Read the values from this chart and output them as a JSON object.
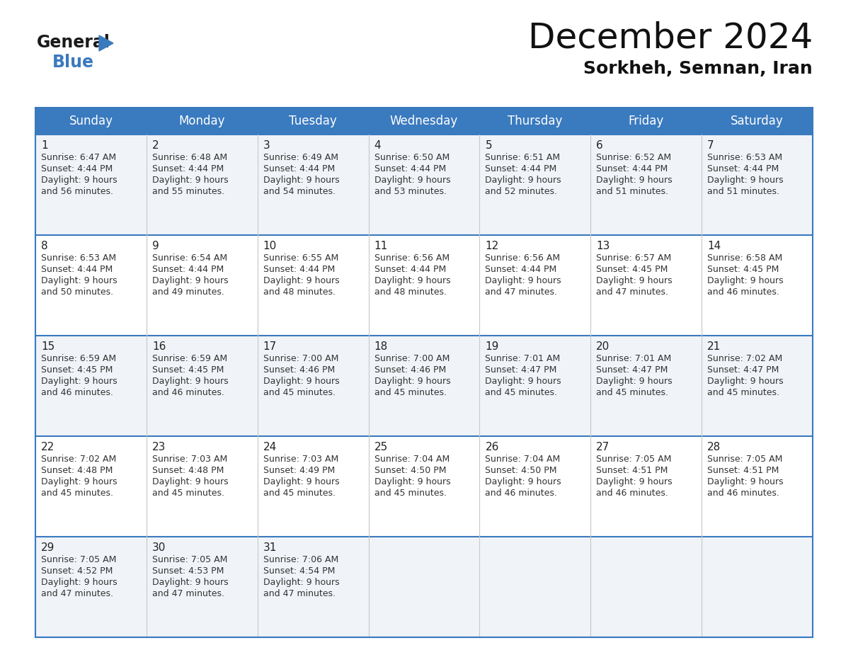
{
  "title": "December 2024",
  "subtitle": "Sorkheh, Semnan, Iran",
  "header_bg": "#3a7abf",
  "header_text": "#ffffff",
  "row_bg_odd": "#f0f4f8",
  "row_bg_even": "#ffffff",
  "separator_color": "#3a7abf",
  "cell_line_color": "#c8c8c8",
  "day_names": [
    "Sunday",
    "Monday",
    "Tuesday",
    "Wednesday",
    "Thursday",
    "Friday",
    "Saturday"
  ],
  "days": [
    {
      "day": 1,
      "col": 0,
      "row": 0,
      "sunrise": "6:47 AM",
      "sunset": "4:44 PM",
      "daylight_h": "9 hours",
      "daylight_m": "and 56 minutes."
    },
    {
      "day": 2,
      "col": 1,
      "row": 0,
      "sunrise": "6:48 AM",
      "sunset": "4:44 PM",
      "daylight_h": "9 hours",
      "daylight_m": "and 55 minutes."
    },
    {
      "day": 3,
      "col": 2,
      "row": 0,
      "sunrise": "6:49 AM",
      "sunset": "4:44 PM",
      "daylight_h": "9 hours",
      "daylight_m": "and 54 minutes."
    },
    {
      "day": 4,
      "col": 3,
      "row": 0,
      "sunrise": "6:50 AM",
      "sunset": "4:44 PM",
      "daylight_h": "9 hours",
      "daylight_m": "and 53 minutes."
    },
    {
      "day": 5,
      "col": 4,
      "row": 0,
      "sunrise": "6:51 AM",
      "sunset": "4:44 PM",
      "daylight_h": "9 hours",
      "daylight_m": "and 52 minutes."
    },
    {
      "day": 6,
      "col": 5,
      "row": 0,
      "sunrise": "6:52 AM",
      "sunset": "4:44 PM",
      "daylight_h": "9 hours",
      "daylight_m": "and 51 minutes."
    },
    {
      "day": 7,
      "col": 6,
      "row": 0,
      "sunrise": "6:53 AM",
      "sunset": "4:44 PM",
      "daylight_h": "9 hours",
      "daylight_m": "and 51 minutes."
    },
    {
      "day": 8,
      "col": 0,
      "row": 1,
      "sunrise": "6:53 AM",
      "sunset": "4:44 PM",
      "daylight_h": "9 hours",
      "daylight_m": "and 50 minutes."
    },
    {
      "day": 9,
      "col": 1,
      "row": 1,
      "sunrise": "6:54 AM",
      "sunset": "4:44 PM",
      "daylight_h": "9 hours",
      "daylight_m": "and 49 minutes."
    },
    {
      "day": 10,
      "col": 2,
      "row": 1,
      "sunrise": "6:55 AM",
      "sunset": "4:44 PM",
      "daylight_h": "9 hours",
      "daylight_m": "and 48 minutes."
    },
    {
      "day": 11,
      "col": 3,
      "row": 1,
      "sunrise": "6:56 AM",
      "sunset": "4:44 PM",
      "daylight_h": "9 hours",
      "daylight_m": "and 48 minutes."
    },
    {
      "day": 12,
      "col": 4,
      "row": 1,
      "sunrise": "6:56 AM",
      "sunset": "4:44 PM",
      "daylight_h": "9 hours",
      "daylight_m": "and 47 minutes."
    },
    {
      "day": 13,
      "col": 5,
      "row": 1,
      "sunrise": "6:57 AM",
      "sunset": "4:45 PM",
      "daylight_h": "9 hours",
      "daylight_m": "and 47 minutes."
    },
    {
      "day": 14,
      "col": 6,
      "row": 1,
      "sunrise": "6:58 AM",
      "sunset": "4:45 PM",
      "daylight_h": "9 hours",
      "daylight_m": "and 46 minutes."
    },
    {
      "day": 15,
      "col": 0,
      "row": 2,
      "sunrise": "6:59 AM",
      "sunset": "4:45 PM",
      "daylight_h": "9 hours",
      "daylight_m": "and 46 minutes."
    },
    {
      "day": 16,
      "col": 1,
      "row": 2,
      "sunrise": "6:59 AM",
      "sunset": "4:45 PM",
      "daylight_h": "9 hours",
      "daylight_m": "and 46 minutes."
    },
    {
      "day": 17,
      "col": 2,
      "row": 2,
      "sunrise": "7:00 AM",
      "sunset": "4:46 PM",
      "daylight_h": "9 hours",
      "daylight_m": "and 45 minutes."
    },
    {
      "day": 18,
      "col": 3,
      "row": 2,
      "sunrise": "7:00 AM",
      "sunset": "4:46 PM",
      "daylight_h": "9 hours",
      "daylight_m": "and 45 minutes."
    },
    {
      "day": 19,
      "col": 4,
      "row": 2,
      "sunrise": "7:01 AM",
      "sunset": "4:47 PM",
      "daylight_h": "9 hours",
      "daylight_m": "and 45 minutes."
    },
    {
      "day": 20,
      "col": 5,
      "row": 2,
      "sunrise": "7:01 AM",
      "sunset": "4:47 PM",
      "daylight_h": "9 hours",
      "daylight_m": "and 45 minutes."
    },
    {
      "day": 21,
      "col": 6,
      "row": 2,
      "sunrise": "7:02 AM",
      "sunset": "4:47 PM",
      "daylight_h": "9 hours",
      "daylight_m": "and 45 minutes."
    },
    {
      "day": 22,
      "col": 0,
      "row": 3,
      "sunrise": "7:02 AM",
      "sunset": "4:48 PM",
      "daylight_h": "9 hours",
      "daylight_m": "and 45 minutes."
    },
    {
      "day": 23,
      "col": 1,
      "row": 3,
      "sunrise": "7:03 AM",
      "sunset": "4:48 PM",
      "daylight_h": "9 hours",
      "daylight_m": "and 45 minutes."
    },
    {
      "day": 24,
      "col": 2,
      "row": 3,
      "sunrise": "7:03 AM",
      "sunset": "4:49 PM",
      "daylight_h": "9 hours",
      "daylight_m": "and 45 minutes."
    },
    {
      "day": 25,
      "col": 3,
      "row": 3,
      "sunrise": "7:04 AM",
      "sunset": "4:50 PM",
      "daylight_h": "9 hours",
      "daylight_m": "and 45 minutes."
    },
    {
      "day": 26,
      "col": 4,
      "row": 3,
      "sunrise": "7:04 AM",
      "sunset": "4:50 PM",
      "daylight_h": "9 hours",
      "daylight_m": "and 46 minutes."
    },
    {
      "day": 27,
      "col": 5,
      "row": 3,
      "sunrise": "7:05 AM",
      "sunset": "4:51 PM",
      "daylight_h": "9 hours",
      "daylight_m": "and 46 minutes."
    },
    {
      "day": 28,
      "col": 6,
      "row": 3,
      "sunrise": "7:05 AM",
      "sunset": "4:51 PM",
      "daylight_h": "9 hours",
      "daylight_m": "and 46 minutes."
    },
    {
      "day": 29,
      "col": 0,
      "row": 4,
      "sunrise": "7:05 AM",
      "sunset": "4:52 PM",
      "daylight_h": "9 hours",
      "daylight_m": "and 47 minutes."
    },
    {
      "day": 30,
      "col": 1,
      "row": 4,
      "sunrise": "7:05 AM",
      "sunset": "4:53 PM",
      "daylight_h": "9 hours",
      "daylight_m": "and 47 minutes."
    },
    {
      "day": 31,
      "col": 2,
      "row": 4,
      "sunrise": "7:06 AM",
      "sunset": "4:54 PM",
      "daylight_h": "9 hours",
      "daylight_m": "and 47 minutes."
    }
  ],
  "logo_text1": "General",
  "logo_text2": "Blue",
  "logo_color": "#3a7abf",
  "title_fontsize": 36,
  "subtitle_fontsize": 18,
  "header_fontsize": 12,
  "day_num_fontsize": 11,
  "cell_text_fontsize": 9
}
